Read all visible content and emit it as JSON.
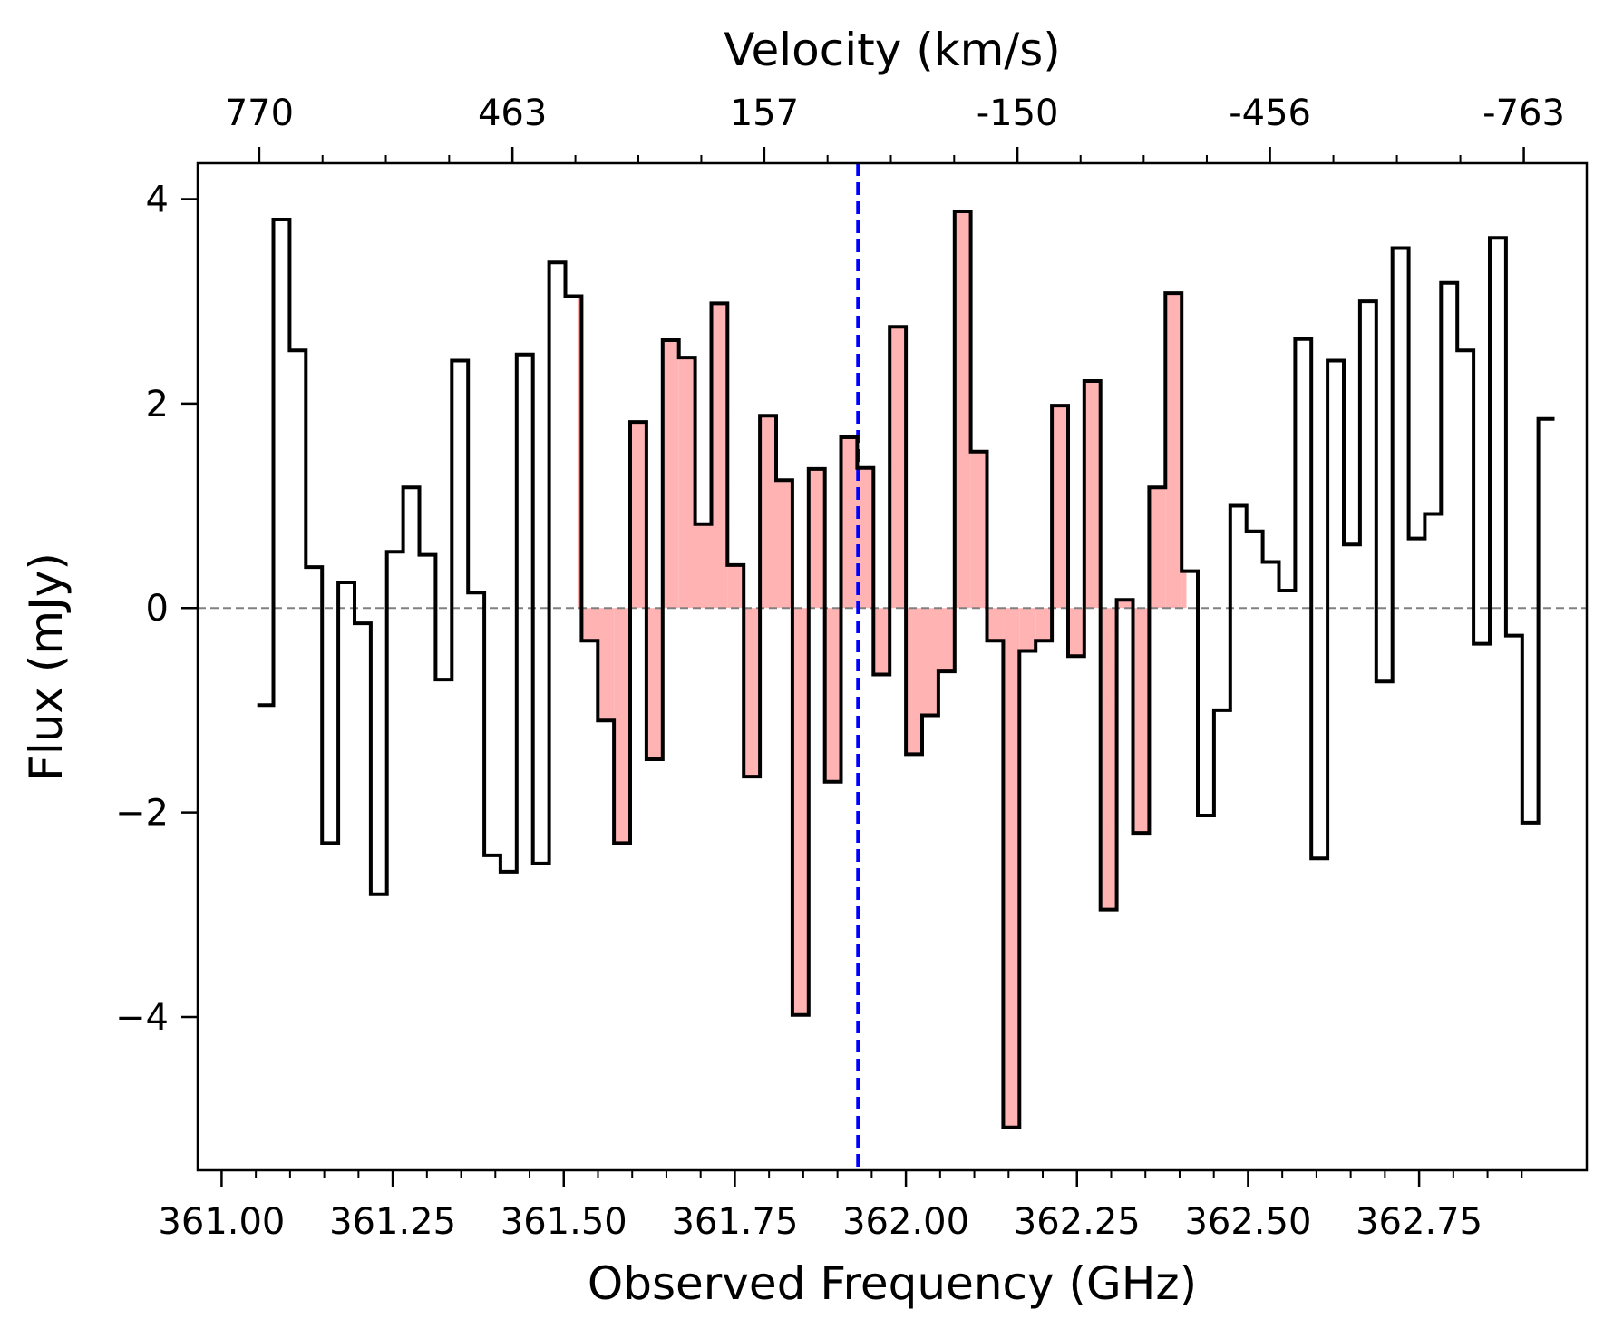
{
  "chart_data": {
    "type": "line",
    "style": "step",
    "title": "",
    "xlabel": "Observed Frequency (GHz)",
    "ylabel": "Flux (mJy)",
    "top_xlabel": "Velocity (km/s)",
    "xlim": [
      360.965,
      362.995
    ],
    "ylim": [
      -5.5,
      4.35
    ],
    "x_ticks": [
      361.0,
      361.25,
      361.5,
      361.75,
      362.0,
      362.25,
      362.5,
      362.75
    ],
    "x_tick_labels": [
      "361.00",
      "361.25",
      "361.50",
      "361.75",
      "362.00",
      "362.25",
      "362.50",
      "362.75"
    ],
    "y_ticks": [
      -4,
      -2,
      0,
      2,
      4
    ],
    "y_tick_labels": [
      "−4",
      "−2",
      "0",
      "2",
      "4"
    ],
    "top_ticks_freq": [
      361.055,
      361.425,
      361.793,
      362.163,
      362.532,
      362.903
    ],
    "top_tick_labels": [
      "770",
      "463",
      "157",
      "-150",
      "-456",
      "-763"
    ],
    "line_center_ghz": 361.93,
    "highlight_range_ghz": [
      361.52,
      362.41
    ],
    "bin_width_ghz": 0.0237,
    "bin_start_ghz": 361.052,
    "flux_mjy": [
      -0.95,
      3.8,
      2.52,
      0.4,
      -2.3,
      0.25,
      -0.15,
      -2.8,
      0.55,
      1.18,
      0.52,
      -0.7,
      2.42,
      0.15,
      -2.42,
      -2.58,
      2.48,
      -2.5,
      3.38,
      3.05,
      -0.32,
      -1.1,
      -2.3,
      1.82,
      -1.48,
      2.62,
      2.45,
      0.82,
      2.98,
      0.42,
      -1.65,
      1.88,
      1.25,
      -3.98,
      1.36,
      -1.7,
      1.67,
      1.37,
      -0.65,
      2.75,
      -1.43,
      -1.05,
      -0.62,
      3.88,
      1.53,
      -0.32,
      -5.08,
      -0.42,
      -0.32,
      1.98,
      -0.47,
      2.22,
      -2.95,
      0.08,
      -2.2,
      1.18,
      3.08,
      0.36,
      -2.03,
      -1.0,
      1.0,
      0.75,
      0.45,
      0.17,
      2.63,
      -2.45,
      2.42,
      0.62,
      3.0,
      -0.72,
      3.52,
      0.68,
      0.92,
      3.18,
      2.52,
      -0.35,
      3.62,
      -0.27,
      -2.1,
      1.85
    ],
    "colors": {
      "step_line": "#000000",
      "fill": "#ffb3b3",
      "center_line": "#0000ff",
      "zero_line": "#808080"
    }
  }
}
